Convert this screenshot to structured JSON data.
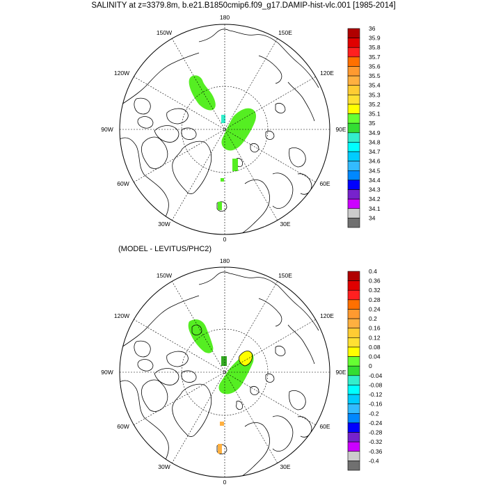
{
  "title": "SALINITY at z=3379.8m, b.e21.B1850cmip6.f09_g17.DAMIP-hist-vlc.001 [1985-2014]",
  "subtitle": "(MODEL - LEVITUS/PHC2)",
  "map_labels": {
    "lon_180": "180",
    "lon_150w": "150W",
    "lon_150e": "150E",
    "lon_120w": "120W",
    "lon_120e": "120E",
    "lon_90w": "90W",
    "lon_90e": "90E",
    "lon_60w": "60W",
    "lon_60e": "60E",
    "lon_30w": "30W",
    "lon_30e": "30E",
    "lon_0": "0"
  },
  "colorbar1": {
    "labels": [
      "36",
      "35.9",
      "35.8",
      "35.7",
      "35.6",
      "35.5",
      "35.4",
      "35.3",
      "35.2",
      "35.1",
      "35",
      "34.9",
      "34.8",
      "34.7",
      "34.6",
      "34.5",
      "34.4",
      "34.3",
      "34.2",
      "34.1",
      "34"
    ]
  },
  "colorbar2": {
    "labels": [
      "0.4",
      "0.36",
      "0.32",
      "0.28",
      "0.24",
      "0.2",
      "0.16",
      "0.12",
      "0.08",
      "0.04",
      "0",
      "-0.04",
      "-0.08",
      "-0.12",
      "-0.16",
      "-0.2",
      "-0.24",
      "-0.28",
      "-0.32",
      "-0.36",
      "-0.4"
    ]
  },
  "colors": {
    "palette": [
      "#b00000",
      "#e00000",
      "#ff2020",
      "#ff7000",
      "#ff9a30",
      "#ffb040",
      "#ffcc33",
      "#ffe033",
      "#ffff00",
      "#66ff33",
      "#33dd33",
      "#33eecc",
      "#00ffff",
      "#00ccff",
      "#33bbff",
      "#0088ff",
      "#0000ff",
      "#7722cc",
      "#cc00ff",
      "#cccccc",
      "#707070"
    ],
    "panel1_field": "#55ee22",
    "panel2_field": "#55ee22",
    "panel2_warm": "#ffcc33",
    "panel2_yellow": "#ffff00"
  }
}
